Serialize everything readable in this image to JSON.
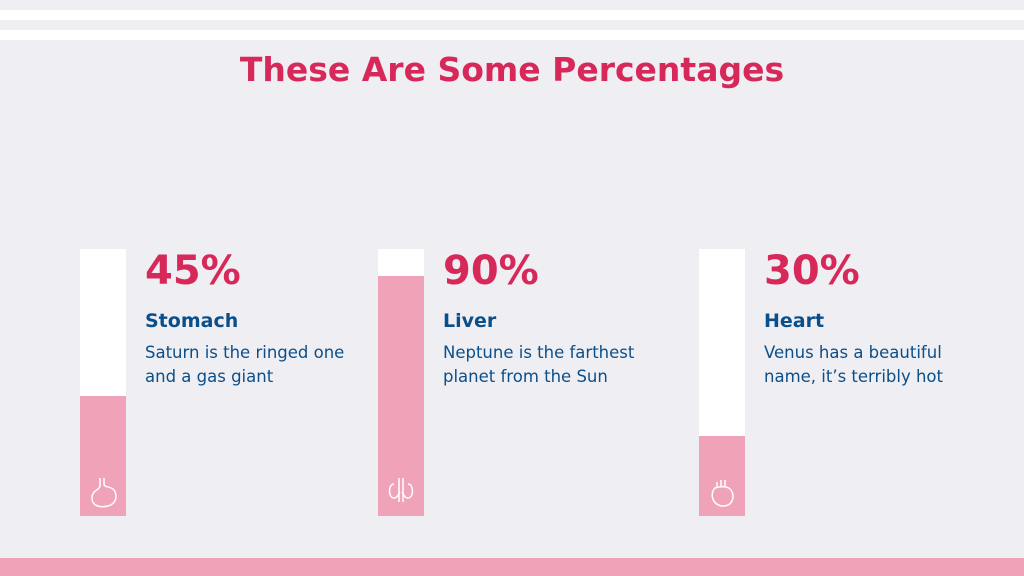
{
  "header": {
    "title": "These Are Some Percentages"
  },
  "range": [
    0,
    100
  ],
  "items": [
    {
      "percent": 45,
      "percent_label": "45%",
      "title": "Stomach",
      "text": [
        "Saturn is the ringed one",
        "and a gas giant"
      ]
    },
    {
      "percent": 90,
      "percent_label": "90%",
      "title": "Liver",
      "text": [
        "Neptune is the farthest",
        "planet from the Sun"
      ]
    },
    {
      "percent": 30,
      "percent_label": "30%",
      "title": "Heart",
      "text": [
        "Venus has a beautiful",
        "name, it’s terribly hot"
      ]
    }
  ]
}
